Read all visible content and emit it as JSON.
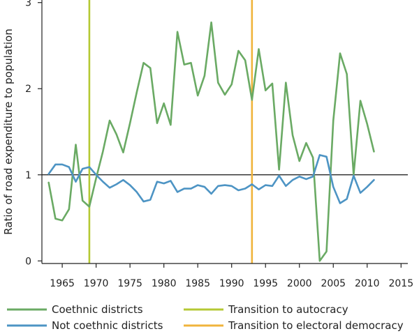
{
  "chart_data": {
    "type": "line",
    "ylabel": "Ratio of road expenditure to population",
    "xlim": [
      1962,
      2016
    ],
    "ylim": [
      -0.03,
      3.03
    ],
    "x_ticks": [
      1965,
      1970,
      1975,
      1980,
      1985,
      1990,
      1995,
      2000,
      2005,
      2010,
      2015
    ],
    "y_ticks": [
      0,
      1,
      2,
      3
    ],
    "reference_line": 1,
    "grid": false,
    "legend_position": "bottom",
    "series": [
      {
        "name": "Coethnic districts",
        "color": "#6aaa64",
        "x": [
          1963,
          1964,
          1965,
          1966,
          1967,
          1968,
          1969,
          1970,
          1971,
          1972,
          1973,
          1974,
          1975,
          1976,
          1977,
          1978,
          1979,
          1980,
          1981,
          1982,
          1983,
          1984,
          1985,
          1986,
          1987,
          1988,
          1989,
          1990,
          1991,
          1992,
          1993,
          1994,
          1995,
          1996,
          1997,
          1998,
          1999,
          2000,
          2001,
          2002,
          2003,
          2004,
          2005,
          2006,
          2007,
          2008,
          2009,
          2010,
          2011
        ],
        "y": [
          0.91,
          0.49,
          0.47,
          0.6,
          1.35,
          0.7,
          0.63,
          0.96,
          1.27,
          1.63,
          1.47,
          1.26,
          1.6,
          1.96,
          2.3,
          2.24,
          1.6,
          1.83,
          1.58,
          2.66,
          2.28,
          2.3,
          1.92,
          2.15,
          2.77,
          2.07,
          1.93,
          2.05,
          2.44,
          2.33,
          1.87,
          2.46,
          1.98,
          2.06,
          1.06,
          2.07,
          1.46,
          1.16,
          1.37,
          1.2,
          0.0,
          0.11,
          1.63,
          2.41,
          2.17,
          1.0,
          1.86,
          1.59,
          1.27
        ]
      },
      {
        "name": "Not coethnic districts",
        "color": "#4d94c4",
        "x": [
          1963,
          1964,
          1965,
          1966,
          1967,
          1968,
          1969,
          1970,
          1971,
          1972,
          1973,
          1974,
          1975,
          1976,
          1977,
          1978,
          1979,
          1980,
          1981,
          1982,
          1983,
          1984,
          1985,
          1986,
          1987,
          1988,
          1989,
          1990,
          1991,
          1992,
          1993,
          1994,
          1995,
          1996,
          1997,
          1998,
          1999,
          2000,
          2001,
          2002,
          2003,
          2004,
          2005,
          2006,
          2007,
          2008,
          2009,
          2010,
          2011
        ],
        "y": [
          1.01,
          1.12,
          1.12,
          1.09,
          0.92,
          1.07,
          1.09,
          1.0,
          0.92,
          0.85,
          0.89,
          0.94,
          0.88,
          0.8,
          0.69,
          0.71,
          0.92,
          0.9,
          0.93,
          0.8,
          0.84,
          0.84,
          0.88,
          0.86,
          0.78,
          0.87,
          0.88,
          0.87,
          0.82,
          0.84,
          0.89,
          0.83,
          0.88,
          0.87,
          0.99,
          0.87,
          0.94,
          0.98,
          0.95,
          0.98,
          1.23,
          1.21,
          0.86,
          0.67,
          0.72,
          0.99,
          0.79,
          0.86,
          0.94
        ]
      }
    ],
    "vertical_lines": [
      {
        "name": "Transition to autocracy",
        "x": 1969,
        "color": "#b5c934"
      },
      {
        "name": "Transition to electoral democracy",
        "x": 1993,
        "color": "#f0b43c"
      }
    ]
  }
}
